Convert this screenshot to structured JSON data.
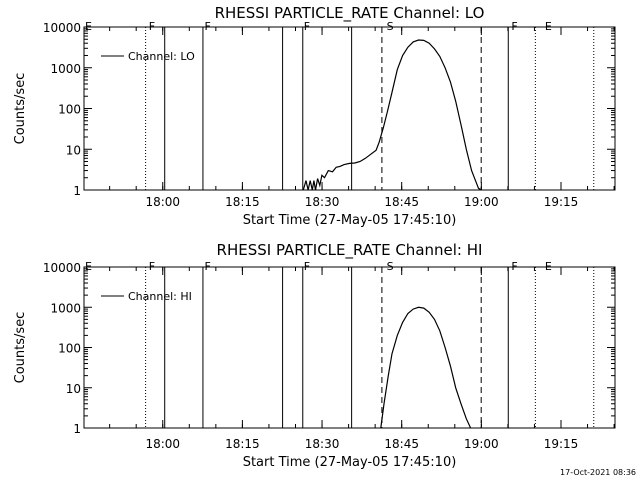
{
  "footer": {
    "timestamp": "17-Oct-2021 08:36"
  },
  "chart_data": [
    {
      "type": "line",
      "title": "RHESSI PARTICLE_RATE Channel: LO",
      "xlabel": "Start Time (27-May-05 17:45:10)",
      "ylabel": "Counts/sec",
      "yscale": "log",
      "ylim": [
        1,
        10000
      ],
      "xlim_min_after_start": [
        0,
        100
      ],
      "xticks_min_after_start": [
        14.83,
        29.83,
        44.83,
        59.83,
        74.83,
        89.83
      ],
      "xtick_labels": [
        "18:00",
        "18:15",
        "18:30",
        "18:45",
        "19:00",
        "19:15"
      ],
      "ytick_values": [
        1,
        10,
        100,
        1000,
        10000
      ],
      "ytick_labels": [
        "1",
        "10",
        "100",
        "1000",
        "10000"
      ],
      "legend": {
        "position": "top-left",
        "entries": [
          "Channel: LO"
        ]
      },
      "flag_labels": [
        {
          "text": "E",
          "x": 0
        },
        {
          "text": "F",
          "x": 12
        },
        {
          "text": "F",
          "x": 22.5
        },
        {
          "text": "F",
          "x": 41.2
        },
        {
          "text": "S",
          "x": 56.8
        },
        {
          "text": "F",
          "x": 80.3
        },
        {
          "text": "E",
          "x": 86.6
        }
      ],
      "markers": [
        {
          "style": "dotted",
          "x": 11.6
        },
        {
          "style": "solid",
          "x": 15.2
        },
        {
          "style": "solid",
          "x": 22.4
        },
        {
          "style": "solid",
          "x": 37.4
        },
        {
          "style": "solid",
          "x": 41.2
        },
        {
          "style": "solid",
          "x": 50.4
        },
        {
          "style": "dashed",
          "x": 56.1
        },
        {
          "style": "dashed",
          "x": 74.8
        },
        {
          "style": "solid",
          "x": 79.9
        },
        {
          "style": "dotted",
          "x": 85.0
        },
        {
          "style": "dotted",
          "x": 96.0
        }
      ],
      "series": [
        {
          "name": "Channel: LO",
          "x": [
            41.3,
            41.8,
            42.2,
            42.6,
            43.0,
            43.3,
            43.6,
            44.0,
            44.4,
            44.8,
            45.3,
            46.0,
            46.8,
            47.5,
            48.2,
            49.0,
            50.0,
            51.0,
            52.0,
            53.0,
            54.0,
            55.0,
            55.6,
            56.4,
            57.2,
            58.0,
            59.0,
            60.0,
            61.0,
            62.0,
            63.0,
            64.0,
            65.0,
            66.0,
            67.0,
            68.0,
            69.0,
            70.0,
            71.0,
            72.0,
            73.0,
            73.8,
            74.3,
            74.8
          ],
          "y": [
            1,
            1.7,
            1,
            1.7,
            1,
            1.7,
            1,
            1.9,
            1.3,
            2.3,
            2.0,
            3.0,
            2.8,
            3.6,
            3.8,
            4.2,
            4.5,
            4.6,
            5.0,
            6.0,
            7.5,
            9.5,
            15,
            35,
            90,
            250,
            900,
            2000,
            3200,
            4300,
            4800,
            4700,
            4000,
            2900,
            1900,
            1000,
            450,
            150,
            40,
            10,
            3,
            1.6,
            1.1,
            1
          ]
        }
      ]
    },
    {
      "type": "line",
      "title": "RHESSI PARTICLE_RATE Channel: HI",
      "xlabel": "Start Time (27-May-05 17:45:10)",
      "ylabel": "Counts/sec",
      "yscale": "log",
      "ylim": [
        1,
        10000
      ],
      "xlim_min_after_start": [
        0,
        100
      ],
      "xticks_min_after_start": [
        14.83,
        29.83,
        44.83,
        59.83,
        74.83,
        89.83
      ],
      "xtick_labels": [
        "18:00",
        "18:15",
        "18:30",
        "18:45",
        "19:00",
        "19:15"
      ],
      "ytick_values": [
        1,
        10,
        100,
        1000,
        10000
      ],
      "ytick_labels": [
        "1",
        "10",
        "100",
        "1000",
        "10000"
      ],
      "legend": {
        "position": "top-left",
        "entries": [
          "Channel: HI"
        ]
      },
      "flag_labels": [
        {
          "text": "E",
          "x": 0
        },
        {
          "text": "F",
          "x": 12
        },
        {
          "text": "F",
          "x": 22.5
        },
        {
          "text": "F",
          "x": 41.2
        },
        {
          "text": "S",
          "x": 56.8
        },
        {
          "text": "F",
          "x": 80.3
        },
        {
          "text": "E",
          "x": 86.6
        }
      ],
      "markers": [
        {
          "style": "dotted",
          "x": 11.6
        },
        {
          "style": "solid",
          "x": 15.2
        },
        {
          "style": "solid",
          "x": 22.4
        },
        {
          "style": "solid",
          "x": 37.4
        },
        {
          "style": "solid",
          "x": 41.2
        },
        {
          "style": "solid",
          "x": 50.4
        },
        {
          "style": "dashed",
          "x": 56.1
        },
        {
          "style": "dashed",
          "x": 74.8
        },
        {
          "style": "solid",
          "x": 79.9
        },
        {
          "style": "dotted",
          "x": 85.0
        },
        {
          "style": "dotted",
          "x": 96.0
        }
      ],
      "series": [
        {
          "name": "Channel: HI",
          "x": [
            55.9,
            56.5,
            57.3,
            58.0,
            59.0,
            60.0,
            61.0,
            62.0,
            63.0,
            64.0,
            65.0,
            66.0,
            67.0,
            68.0,
            69.0,
            70.0,
            71.0,
            72.0,
            72.8
          ],
          "y": [
            1,
            4,
            20,
            70,
            200,
            420,
            700,
            900,
            1000,
            950,
            750,
            500,
            260,
            100,
            35,
            10,
            4,
            1.7,
            1
          ]
        }
      ]
    }
  ]
}
